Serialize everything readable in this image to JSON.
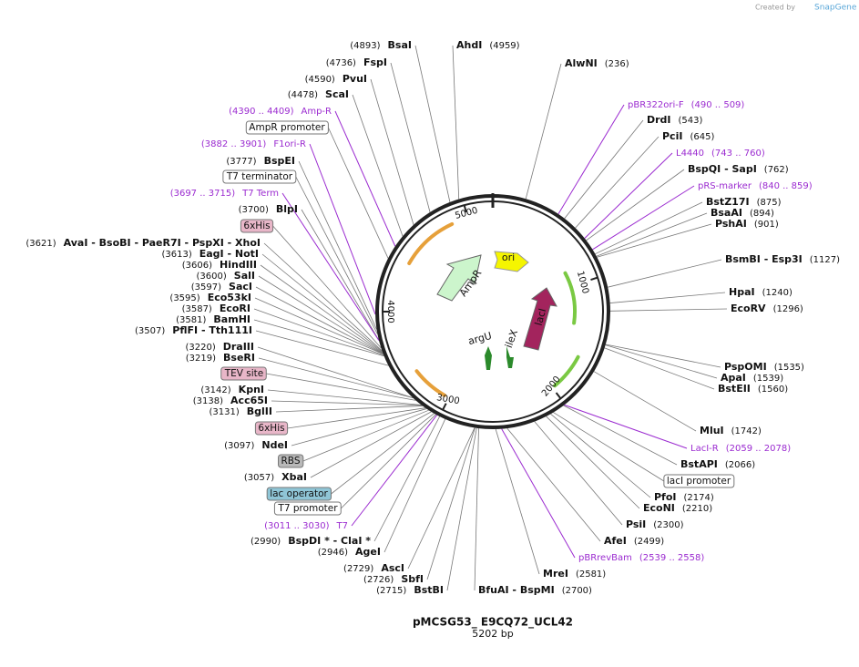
{
  "credit": {
    "prefix": "Created by",
    "brand": "SnapGene"
  },
  "title": "pMCSG53_ E9CQ72_UCL42",
  "length": "5202 bp",
  "ruler": [
    "1000",
    "2000",
    "3000",
    "4000",
    "5000"
  ],
  "map_features": [
    "ori",
    "AmpR",
    "lacI",
    "argU",
    "ileX"
  ],
  "enzymes": [
    {
      "name": "BsaI",
      "pos": "(4893)"
    },
    {
      "name": "AhdI",
      "pos": "(4959)"
    },
    {
      "name": "AlwNI",
      "pos": "(236)"
    },
    {
      "name": "FspI",
      "pos": "(4736)"
    },
    {
      "name": "PvuI",
      "pos": "(4590)"
    },
    {
      "name": "ScaI",
      "pos": "(4478)"
    },
    {
      "name": "DrdI",
      "pos": "(543)"
    },
    {
      "name": "PciI",
      "pos": "(645)"
    },
    {
      "name": "BspQI  - SapI",
      "pos": "(762)"
    },
    {
      "name": "BstZ17I",
      "pos": "(875)"
    },
    {
      "name": "BsaAI",
      "pos": "(894)"
    },
    {
      "name": "PshAI",
      "pos": "(901)"
    },
    {
      "name": "BsmBI  - Esp3I",
      "pos": "(1127)"
    },
    {
      "name": "HpaI",
      "pos": "(1240)"
    },
    {
      "name": "EcoRV",
      "pos": "(1296)"
    },
    {
      "name": "PspOMI",
      "pos": "(1535)"
    },
    {
      "name": "ApaI",
      "pos": "(1539)"
    },
    {
      "name": "BstEII",
      "pos": "(1560)"
    },
    {
      "name": "MluI",
      "pos": "(1742)"
    },
    {
      "name": "BstAPI",
      "pos": "(2066)"
    },
    {
      "name": "PfoI",
      "pos": "(2174)"
    },
    {
      "name": "EcoNI",
      "pos": "(2210)"
    },
    {
      "name": "PsiI",
      "pos": "(2300)"
    },
    {
      "name": "AfeI",
      "pos": "(2499)"
    },
    {
      "name": "MreI",
      "pos": "(2581)"
    },
    {
      "name": "BfuAI  - BspMI",
      "pos": "(2700)"
    },
    {
      "name": "BstBI",
      "pos": "(2715)"
    },
    {
      "name": "SbfI",
      "pos": "(2726)"
    },
    {
      "name": "AscI",
      "pos": "(2729)"
    },
    {
      "name": "AgeI",
      "pos": "(2946)"
    },
    {
      "name": "BspDI *  - ClaI *",
      "pos": "(2990)"
    },
    {
      "name": "XbaI",
      "pos": "(3057)"
    },
    {
      "name": "NdeI",
      "pos": "(3097)"
    },
    {
      "name": "BglII",
      "pos": "(3131)"
    },
    {
      "name": "Acc65I",
      "pos": "(3138)"
    },
    {
      "name": "KpnI",
      "pos": "(3142)"
    },
    {
      "name": "BseRI",
      "pos": "(3219)"
    },
    {
      "name": "DraIII",
      "pos": "(3220)"
    },
    {
      "name": "PflFI  - Tth111I",
      "pos": "(3507)"
    },
    {
      "name": "BamHI",
      "pos": "(3581)"
    },
    {
      "name": "EcoRI",
      "pos": "(3587)"
    },
    {
      "name": "Eco53kI",
      "pos": "(3595)"
    },
    {
      "name": "SacI",
      "pos": "(3597)"
    },
    {
      "name": "SalI",
      "pos": "(3600)"
    },
    {
      "name": "HindIII",
      "pos": "(3606)"
    },
    {
      "name": "EagI  - NotI",
      "pos": "(3613)"
    },
    {
      "name": "AvaI  - BsoBI  - PaeR7I  - PspXI  - XhoI",
      "pos": "(3621)"
    },
    {
      "name": "BlpI",
      "pos": "(3700)"
    },
    {
      "name": "BspEI",
      "pos": "(3777)"
    }
  ],
  "primers": [
    {
      "name": "Amp-R",
      "pos": "(4390 .. 4409)"
    },
    {
      "name": "F1ori-R",
      "pos": "(3882 .. 3901)"
    },
    {
      "name": "T7 Term",
      "pos": "(3697 .. 3715)"
    },
    {
      "name": "T7",
      "pos": "(3011 .. 3030)"
    },
    {
      "name": "pBR322ori-F",
      "pos": "(490 .. 509)"
    },
    {
      "name": "L4440",
      "pos": "(743 .. 760)"
    },
    {
      "name": "pRS-marker",
      "pos": "(840 .. 859)"
    },
    {
      "name": "LacI-R",
      "pos": "(2059 .. 2078)"
    },
    {
      "name": "pBRrevBam",
      "pos": "(2539 .. 2558)"
    }
  ],
  "features": [
    "AmpR promoter",
    "T7 terminator",
    "6xHis",
    "TEV site",
    "6xHis",
    "RBS",
    "lac operator",
    "T7 promoter",
    "lacI promoter"
  ]
}
